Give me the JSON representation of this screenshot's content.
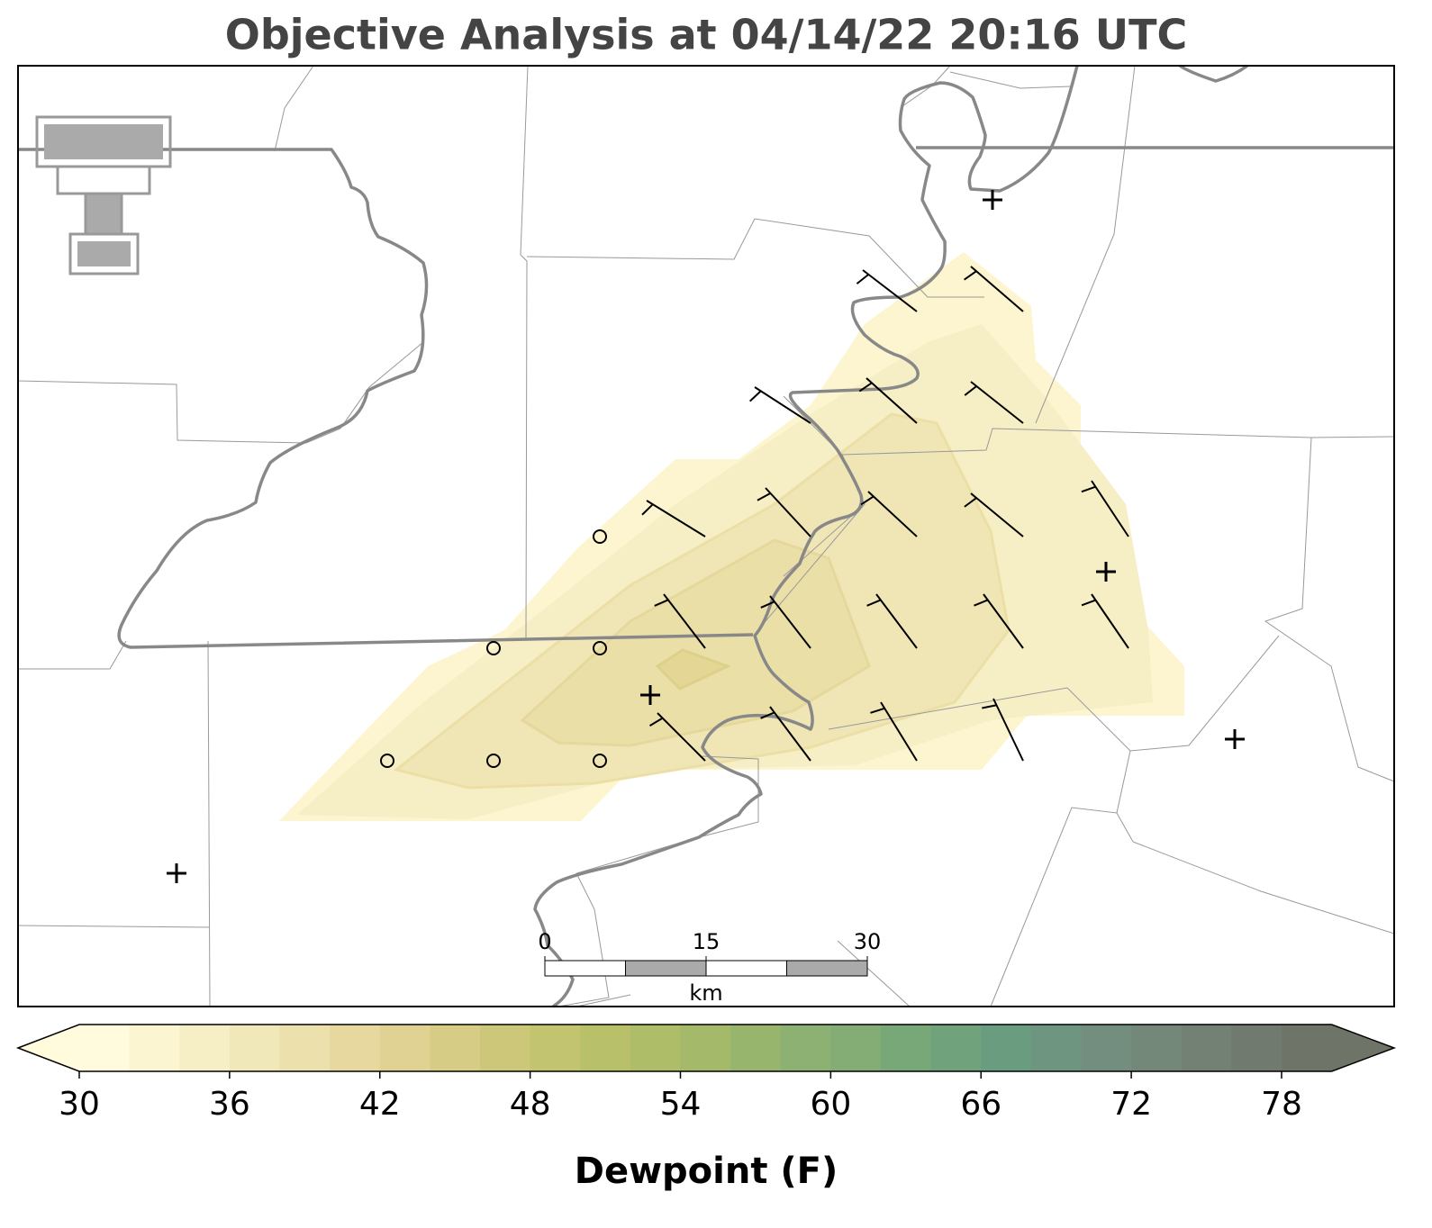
{
  "chart_data": {
    "type": "colorbar-map",
    "title": "Objective Analysis at 04/14/22 20:16 UTC",
    "colorbar": {
      "label": "Dewpoint (F)",
      "clim": [
        30,
        80
      ],
      "ticks": [
        30,
        36,
        42,
        48,
        54,
        60,
        66,
        72,
        78
      ],
      "colors": [
        "#fffbdc",
        "#fbf5d2",
        "#f6efc6",
        "#f1e8ba",
        "#ece0ad",
        "#e6d89f",
        "#dfd293",
        "#d6cc86",
        "#cdc77a",
        "#c3c470",
        "#b8c06a",
        "#adbd68",
        "#a4b96a",
        "#98b56e",
        "#8db172",
        "#83ad75",
        "#79a878",
        "#70a27c",
        "#6a9c80",
        "#6e9580",
        "#738e7e",
        "#748879",
        "#728174",
        "#707a6e",
        "#6e7467"
      ],
      "extend_colors": [
        "#fffbdc",
        "#6e7467"
      ]
    },
    "scale_bar": {
      "unit": "km",
      "ticks": [
        0,
        15,
        30
      ],
      "range": [
        0,
        30
      ]
    }
  }
}
